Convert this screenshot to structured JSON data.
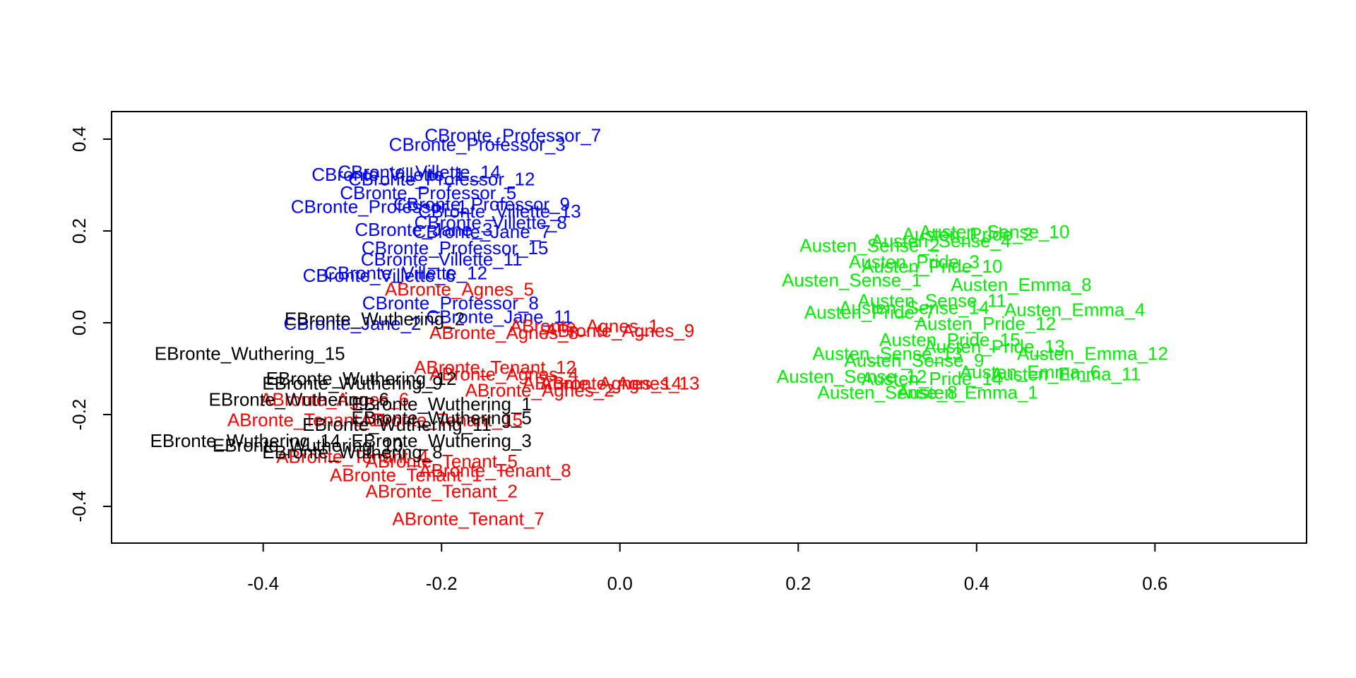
{
  "chart_data": {
    "type": "scatter",
    "title": "",
    "xlabel": "",
    "ylabel": "",
    "xlim": [
      -0.57,
      0.77
    ],
    "ylim": [
      -0.48,
      0.46
    ],
    "xticks": [
      -0.4,
      -0.2,
      0.0,
      0.2,
      0.4,
      0.6
    ],
    "xtick_labels": [
      "-0.4",
      "-0.2",
      "0.0",
      "0.2",
      "0.4",
      "0.6"
    ],
    "yticks": [
      -0.4,
      -0.2,
      0.0,
      0.2,
      0.4
    ],
    "ytick_labels": [
      "-0.4",
      "-0.2",
      "0.0",
      "0.2",
      "0.4"
    ],
    "grid": false,
    "legend": "none",
    "series": [
      {
        "color": "#0000ff",
        "points": [
          {
            "label": "CBronte_Professor_7",
            "x": -0.12,
            "y": 0.405
          },
          {
            "label": "CBronte_Professor_3",
            "x": -0.16,
            "y": 0.385
          },
          {
            "label": "CBronte_Villette_14",
            "x": -0.225,
            "y": 0.325
          },
          {
            "label": "CBronte_Villette_1",
            "x": -0.26,
            "y": 0.32
          },
          {
            "label": "CBronte_Professor_12",
            "x": -0.2,
            "y": 0.31
          },
          {
            "label": "CBronte_Professor_5",
            "x": -0.215,
            "y": 0.28
          },
          {
            "label": "CBronte_Professor_9",
            "x": -0.155,
            "y": 0.255
          },
          {
            "label": "CBronte_Professor_1",
            "x": -0.27,
            "y": 0.25
          },
          {
            "label": "CBronte_Villette_13",
            "x": -0.135,
            "y": 0.24
          },
          {
            "label": "CBronte_Villette_8",
            "x": -0.145,
            "y": 0.215
          },
          {
            "label": "CBronte_Jane_7",
            "x": -0.155,
            "y": 0.195
          },
          {
            "label": "CBronte_Jane_3",
            "x": -0.22,
            "y": 0.2
          },
          {
            "label": "CBronte_Professor_15",
            "x": -0.185,
            "y": 0.16
          },
          {
            "label": "CBronte_Villette_11",
            "x": -0.2,
            "y": 0.135
          },
          {
            "label": "CBronte_Villette_12",
            "x": -0.24,
            "y": 0.105
          },
          {
            "label": "CBronte_Villette_6",
            "x": -0.27,
            "y": 0.1
          },
          {
            "label": "CBronte_Professor_8",
            "x": -0.19,
            "y": 0.04
          },
          {
            "label": "CBronte_Jane_11",
            "x": -0.135,
            "y": 0.01
          },
          {
            "label": "CBronte_Jane_2",
            "x": -0.3,
            "y": -0.005
          }
        ]
      },
      {
        "color": "#ff0000",
        "points": [
          {
            "label": "ABronte_Agnes_5",
            "x": -0.18,
            "y": 0.07
          },
          {
            "label": "ABronte_Agnes_1",
            "x": -0.04,
            "y": -0.01
          },
          {
            "label": "ABronte_Agnes_9",
            "x": 0.0,
            "y": -0.02
          },
          {
            "label": "ABronte_Agnes_8",
            "x": -0.13,
            "y": -0.025
          },
          {
            "label": "ABronte_Tenant_12",
            "x": -0.14,
            "y": -0.1
          },
          {
            "label": "ABronte_Agnes_4",
            "x": -0.13,
            "y": -0.115
          },
          {
            "label": "ABronte_Agnes_14",
            "x": -0.02,
            "y": -0.135
          },
          {
            "label": "ABronte_Agnes_13",
            "x": 0.0,
            "y": -0.135
          },
          {
            "label": "ABronte_Agnes_2",
            "x": -0.09,
            "y": -0.15
          },
          {
            "label": "ABronte_Agnes_6",
            "x": -0.32,
            "y": -0.17
          },
          {
            "label": "ABronte_Tenant_15",
            "x": -0.2,
            "y": -0.215
          },
          {
            "label": "ABronte_Tenant_11",
            "x": -0.35,
            "y": -0.215
          },
          {
            "label": "ABronte_Tenant_4",
            "x": -0.3,
            "y": -0.295
          },
          {
            "label": "ABronte_Tenant_5",
            "x": -0.2,
            "y": -0.305
          },
          {
            "label": "ABronte_Tenant_8",
            "x": -0.14,
            "y": -0.325
          },
          {
            "label": "ABronte_Tenant_1",
            "x": -0.24,
            "y": -0.335
          },
          {
            "label": "ABronte_Tenant_2",
            "x": -0.2,
            "y": -0.37
          },
          {
            "label": "ABronte_Tenant_7",
            "x": -0.17,
            "y": -0.43
          }
        ]
      },
      {
        "color": "#000000",
        "points": [
          {
            "label": "EBronte_Wuthering_2",
            "x": -0.275,
            "y": 0.005
          },
          {
            "label": "EBronte_Wuthering_15",
            "x": -0.415,
            "y": -0.07
          },
          {
            "label": "EBronte_Wuthering_12",
            "x": -0.29,
            "y": -0.125
          },
          {
            "label": "EBronte_Wuthering_9",
            "x": -0.3,
            "y": -0.135
          },
          {
            "label": "EBronte_Wuthering_6",
            "x": -0.36,
            "y": -0.17
          },
          {
            "label": "EBronte_Wuthering_1",
            "x": -0.2,
            "y": -0.18
          },
          {
            "label": "EBronte_Wuthering_5",
            "x": -0.2,
            "y": -0.21
          },
          {
            "label": "EBronte_Wuthering_11",
            "x": -0.25,
            "y": -0.225
          },
          {
            "label": "EBronte_Wuthering_3",
            "x": -0.2,
            "y": -0.26
          },
          {
            "label": "EBronte_Wuthering_14",
            "x": -0.42,
            "y": -0.26
          },
          {
            "label": "EBronte_Wuthering_10",
            "x": -0.35,
            "y": -0.27
          },
          {
            "label": "EBronte_Wuthering_8",
            "x": -0.3,
            "y": -0.285
          }
        ]
      },
      {
        "color": "#00ee00",
        "points": [
          {
            "label": "Austen_Sense_10",
            "x": 0.42,
            "y": 0.195
          },
          {
            "label": "Austen_Pride_2",
            "x": 0.39,
            "y": 0.19
          },
          {
            "label": "Austen_Sense_4",
            "x": 0.36,
            "y": 0.175
          },
          {
            "label": "Austen_Sense_2",
            "x": 0.28,
            "y": 0.165
          },
          {
            "label": "Austen_Pride_3",
            "x": 0.33,
            "y": 0.13
          },
          {
            "label": "Austen_Pride_10",
            "x": 0.35,
            "y": 0.12
          },
          {
            "label": "Austen_Sense_1",
            "x": 0.26,
            "y": 0.09
          },
          {
            "label": "Austen_Emma_8",
            "x": 0.45,
            "y": 0.08
          },
          {
            "label": "Austen_Sense_11",
            "x": 0.35,
            "y": 0.045
          },
          {
            "label": "Austen_Sense_14",
            "x": 0.33,
            "y": 0.03
          },
          {
            "label": "Austen_Emma_4",
            "x": 0.51,
            "y": 0.025
          },
          {
            "label": "Austen_Pride_7",
            "x": 0.28,
            "y": 0.02
          },
          {
            "label": "Austen_Pride_12",
            "x": 0.41,
            "y": -0.005
          },
          {
            "label": "Austen_Pride_15",
            "x": 0.37,
            "y": -0.04
          },
          {
            "label": "Austen_Pride_13",
            "x": 0.42,
            "y": -0.055
          },
          {
            "label": "Austen_Emma_12",
            "x": 0.53,
            "y": -0.07
          },
          {
            "label": "Austen_Sense_13",
            "x": 0.3,
            "y": -0.07
          },
          {
            "label": "Austen_Sense_9",
            "x": 0.33,
            "y": -0.085
          },
          {
            "label": "Austen_Emma_6",
            "x": 0.46,
            "y": -0.11
          },
          {
            "label": "Austen_Emma_11",
            "x": 0.5,
            "y": -0.115
          },
          {
            "label": "Austen_Sense_12",
            "x": 0.26,
            "y": -0.12
          },
          {
            "label": "Austen_Pride_14",
            "x": 0.35,
            "y": -0.125
          },
          {
            "label": "Austen_Sense_8",
            "x": 0.3,
            "y": -0.155
          },
          {
            "label": "Austen_Emma_1",
            "x": 0.39,
            "y": -0.155
          }
        ]
      }
    ]
  }
}
